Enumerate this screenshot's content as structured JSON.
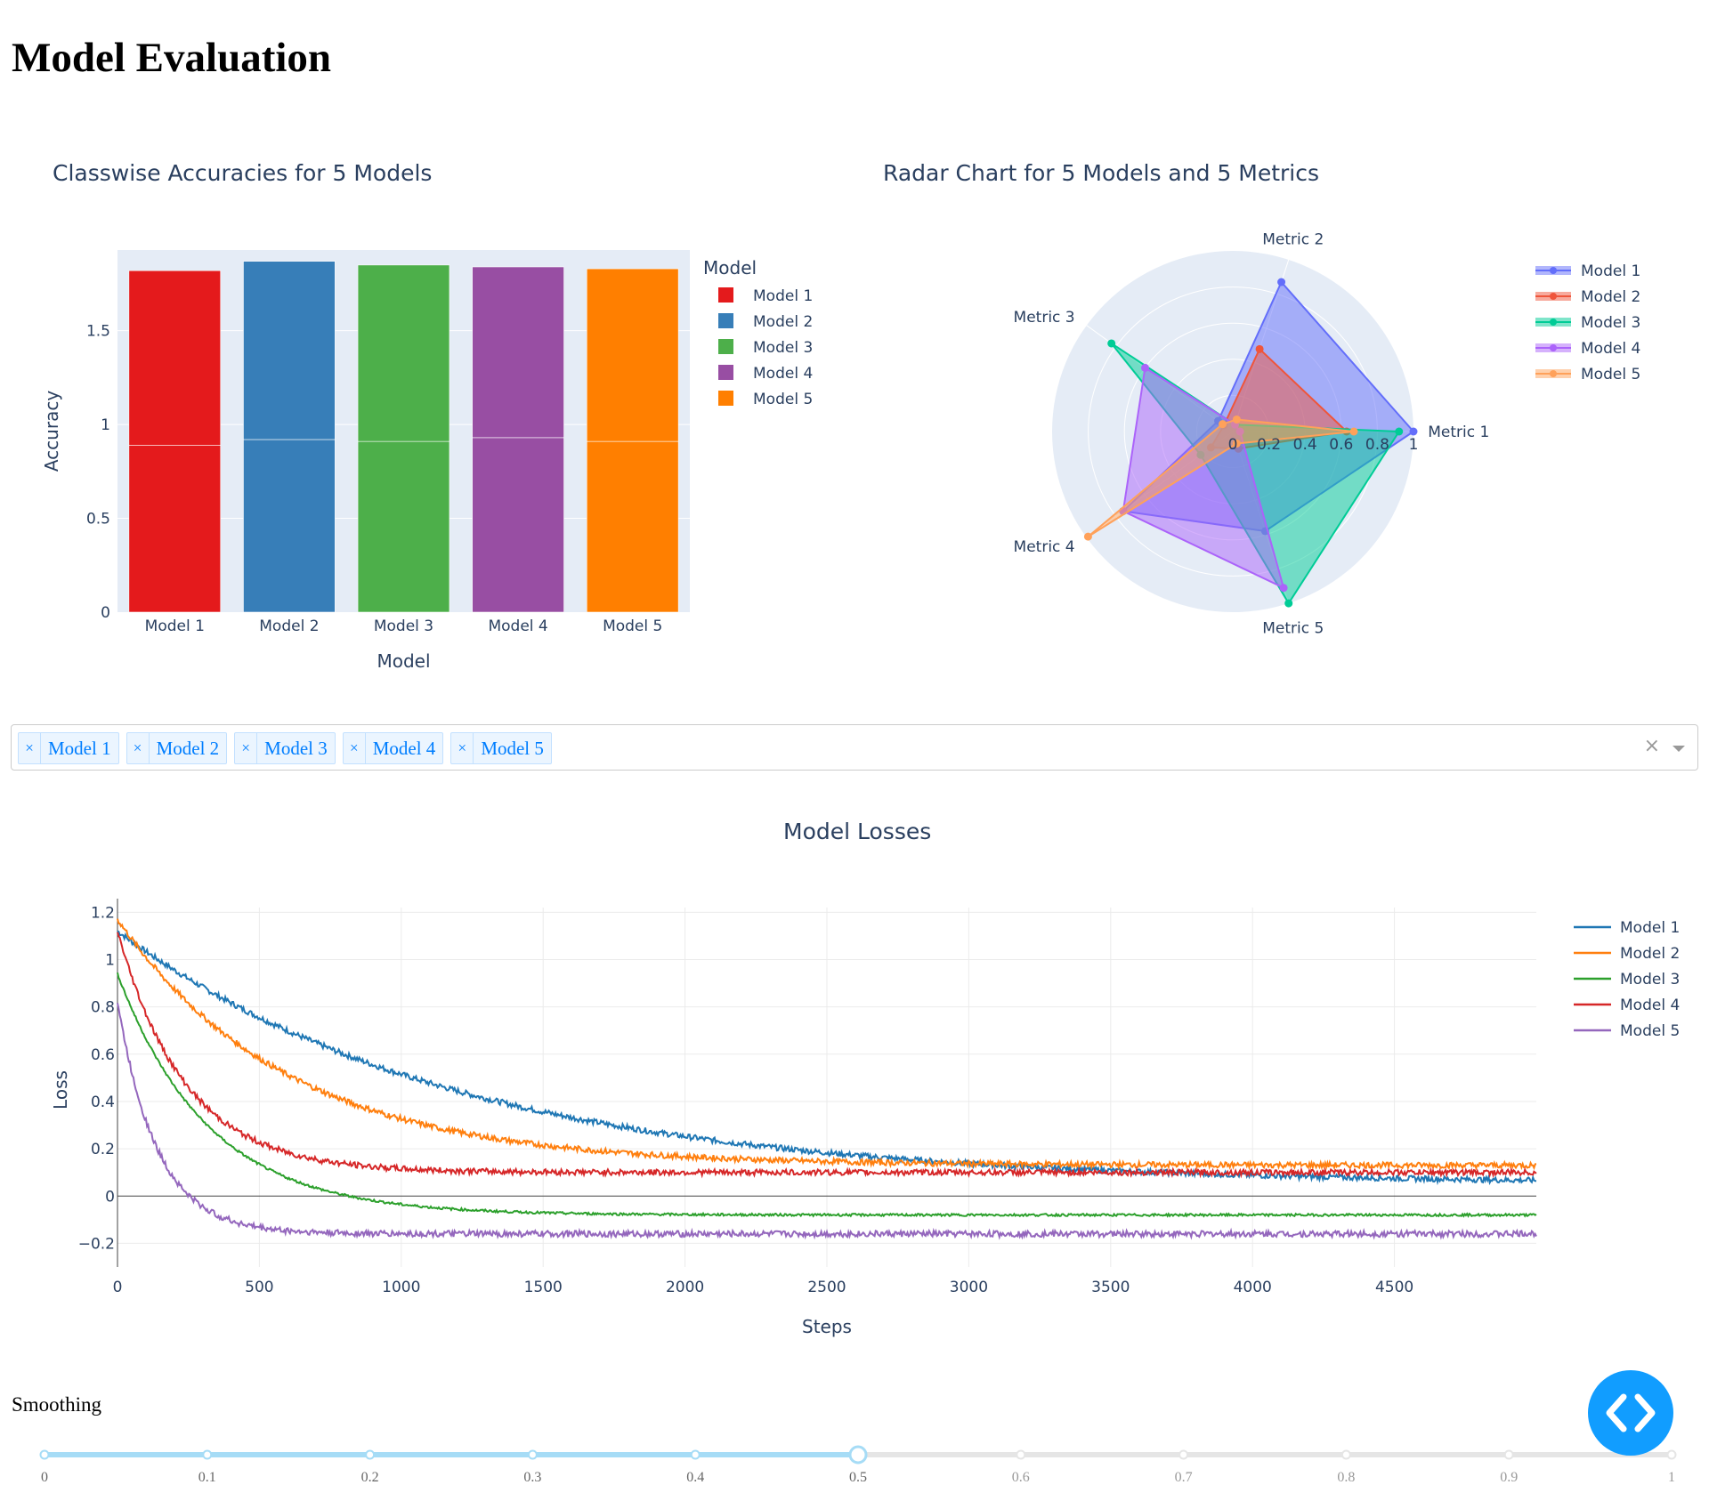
{
  "page": {
    "title": "Model Evaluation"
  },
  "bar_chart": {
    "title": "Classwise Accuracies for 5 Models",
    "xlabel": "Model",
    "ylabel": "Accuracy",
    "legend_title": "Model",
    "y_ticks": [
      "0",
      "0.5",
      "1",
      "1.5"
    ],
    "colors": [
      "#e41a1c",
      "#377eb8",
      "#4daf4a",
      "#984ea3",
      "#ff7f00"
    ],
    "categories": [
      "Model 1",
      "Model 2",
      "Model 3",
      "Model 4",
      "Model 5"
    ]
  },
  "radar_chart": {
    "title": "Radar Chart for 5 Models and 5 Metrics",
    "radial_ticks": [
      "0",
      "0.2",
      "0.4",
      "0.6",
      "0.8",
      "1"
    ],
    "colors": [
      "#636efa",
      "#ef553b",
      "#00cc96",
      "#ab63fa",
      "#ffa15a"
    ]
  },
  "dropdown": {
    "selected": [
      "Model 1",
      "Model 2",
      "Model 3",
      "Model 4",
      "Model 5"
    ],
    "remove_glyph": "×",
    "clear_glyph": "×"
  },
  "loss_chart": {
    "title": "Model Losses",
    "xlabel": "Steps",
    "ylabel": "Loss",
    "x_ticks": [
      "0",
      "500",
      "1000",
      "1500",
      "2000",
      "2500",
      "3000",
      "3500",
      "4000",
      "4500"
    ],
    "y_ticks": [
      "1.2",
      "1",
      "0.8",
      "0.6",
      "0.4",
      "0.2",
      "0",
      "−0.2"
    ],
    "colors": [
      "#1f77b4",
      "#ff7f0e",
      "#2ca02c",
      "#d62728",
      "#9467bd"
    ]
  },
  "slider": {
    "label": "Smoothing",
    "marks": [
      "0",
      "0.1",
      "0.2",
      "0.3",
      "0.4",
      "0.5",
      "0.6",
      "0.7",
      "0.8",
      "0.9",
      "1"
    ],
    "value": 0.5,
    "active_color": "#a6dcf6",
    "inactive_color": "#e5e5e5"
  },
  "fab": {
    "icon": "code-icon",
    "color": "#119dff"
  },
  "chart_data": [
    {
      "type": "bar",
      "title": "Classwise Accuracies for 5 Models",
      "xlabel": "Model",
      "ylabel": "Accuracy",
      "categories": [
        "Model 1",
        "Model 2",
        "Model 3",
        "Model 4",
        "Model 5"
      ],
      "stacked": true,
      "segments": [
        [
          0.89,
          0.93
        ],
        [
          0.92,
          0.95
        ],
        [
          0.91,
          0.94
        ],
        [
          0.93,
          0.91
        ],
        [
          0.91,
          0.92
        ]
      ],
      "totals": [
        1.82,
        1.87,
        1.85,
        1.84,
        1.83
      ],
      "ylim": [
        0,
        1.93
      ],
      "legend_title": "Model",
      "legend": [
        "Model 1",
        "Model 2",
        "Model 3",
        "Model 4",
        "Model 5"
      ],
      "legend_position": "right"
    },
    {
      "type": "radar",
      "title": "Radar Chart for 5 Models and 5 Metrics",
      "axes": [
        "Metric 1",
        "Metric 2",
        "Metric 3",
        "Metric 4",
        "Metric 5"
      ],
      "range": [
        0,
        1
      ],
      "series": [
        {
          "name": "Model 1",
          "values": [
            1.0,
            0.87,
            0.1,
            0.75,
            0.58
          ]
        },
        {
          "name": "Model 2",
          "values": [
            0.63,
            0.48,
            0.06,
            0.15,
            0.1
          ]
        },
        {
          "name": "Model 3",
          "values": [
            0.92,
            0.04,
            0.83,
            0.22,
            1.0
          ]
        },
        {
          "name": "Model 4",
          "values": [
            0.04,
            0.04,
            0.6,
            0.75,
            0.91
          ]
        },
        {
          "name": "Model 5",
          "values": [
            0.67,
            0.07,
            0.07,
            0.99,
            0.07
          ]
        }
      ],
      "legend_position": "right"
    },
    {
      "type": "line",
      "title": "Model Losses",
      "xlabel": "Steps",
      "ylabel": "Loss",
      "xlim": [
        0,
        5000
      ],
      "ylim": [
        -0.3,
        1.22
      ],
      "series": [
        {
          "name": "Model 1",
          "start": 1.12,
          "end": 0.05,
          "tau": 1200
        },
        {
          "name": "Model 2",
          "start": 1.17,
          "end": 0.13,
          "tau": 600
        },
        {
          "name": "Model 3",
          "start": 0.94,
          "end": -0.08,
          "tau": 320
        },
        {
          "name": "Model 4",
          "start": 1.12,
          "end": 0.1,
          "tau": 240
        },
        {
          "name": "Model 5",
          "start": 0.82,
          "end": -0.16,
          "tau": 140
        }
      ],
      "grid": true,
      "legend_position": "right"
    }
  ]
}
